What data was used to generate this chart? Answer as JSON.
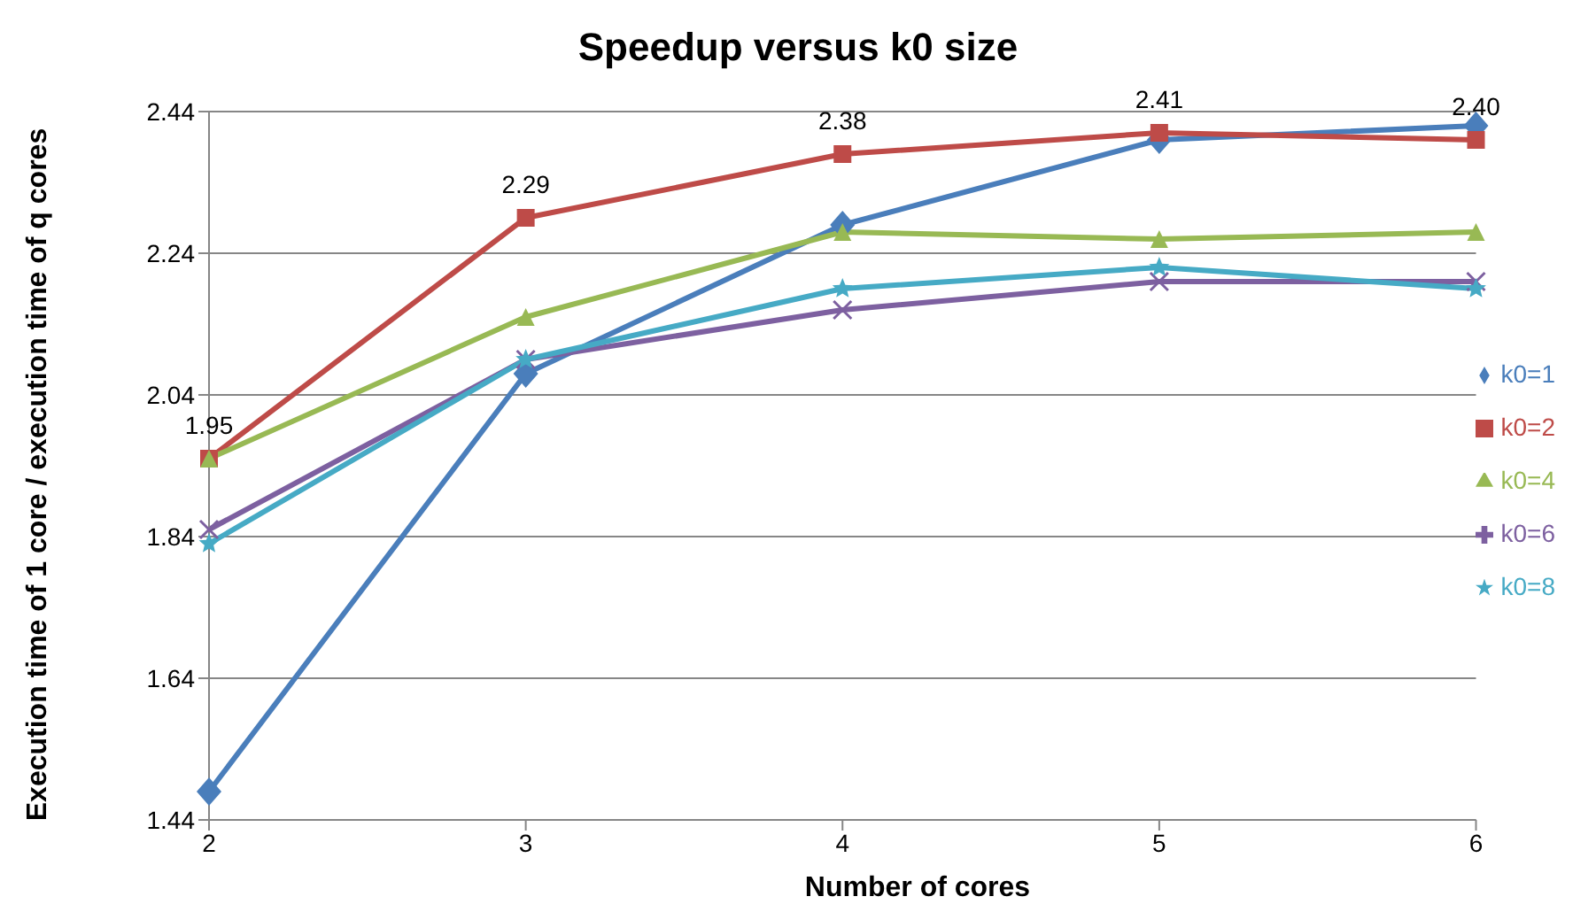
{
  "chart_data": {
    "type": "line",
    "title": "Speedup versus k0 size",
    "xlabel": "Number of cores",
    "ylabel": "Execution time of 1 core / execution time of q cores",
    "categories": [
      "2",
      "3",
      "4",
      "5",
      "6"
    ],
    "series": [
      {
        "name": "k0=1",
        "color": "#4a7ebb",
        "marker": "diamond",
        "values": [
          1.48,
          2.07,
          2.28,
          2.4,
          2.42
        ]
      },
      {
        "name": "k0=2",
        "color": "#be4b48",
        "marker": "square",
        "values": [
          1.95,
          2.29,
          2.38,
          2.41,
          2.4
        ],
        "value_labels": [
          "1.95",
          "2.29",
          "2.38",
          "2.41",
          "2.40"
        ]
      },
      {
        "name": "k0=4",
        "color": "#98b954",
        "marker": "triangle",
        "values": [
          1.95,
          2.15,
          2.27,
          2.26,
          2.27
        ]
      },
      {
        "name": "k0=6",
        "color": "#7d60a0",
        "marker": "cross",
        "values": [
          1.85,
          2.09,
          2.16,
          2.2,
          2.2
        ]
      },
      {
        "name": "k0=8",
        "color": "#46aac5",
        "marker": "star",
        "values": [
          1.83,
          2.09,
          2.19,
          2.22,
          2.19
        ]
      }
    ],
    "ylim": [
      1.44,
      2.44
    ],
    "yticks": [
      1.44,
      1.64,
      1.84,
      2.04,
      2.24,
      2.44
    ],
    "grid": "y",
    "legend": "right",
    "line_style": "solid"
  }
}
